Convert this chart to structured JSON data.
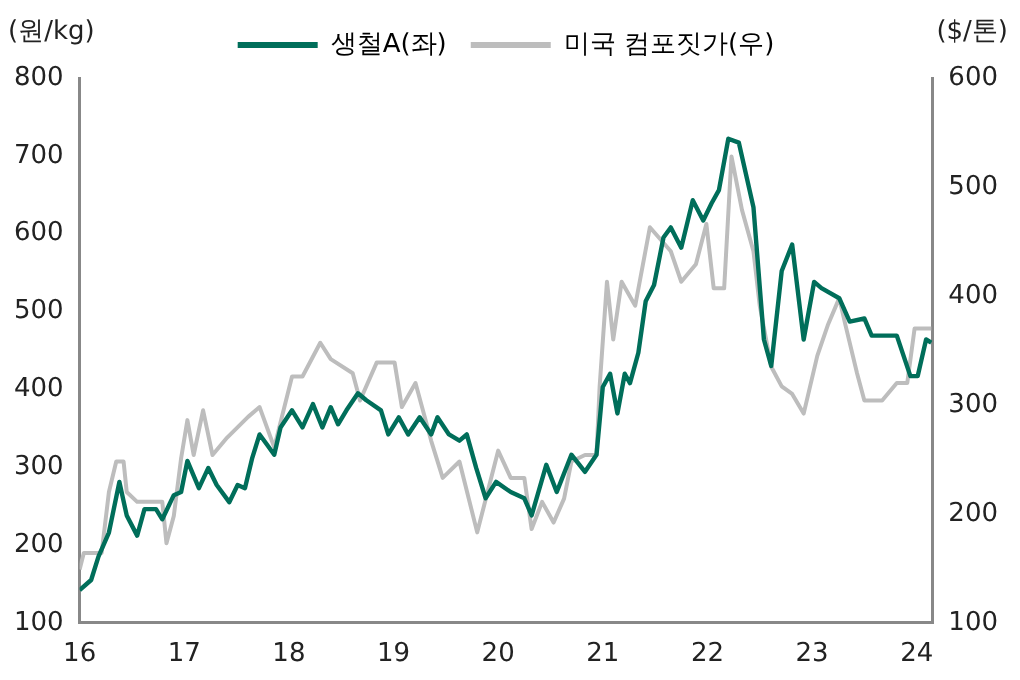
{
  "chart_data": {
    "type": "line",
    "ylabel": "(원/kg)",
    "y2label": "($/톤)",
    "xlim": [
      16,
      24.15
    ],
    "xticks": [
      16,
      17,
      18,
      19,
      20,
      21,
      22,
      23,
      24
    ],
    "ylim": [
      100,
      800
    ],
    "yticks": [
      100,
      200,
      300,
      400,
      500,
      600,
      700,
      800
    ],
    "y2lim": [
      100,
      600
    ],
    "y2ticks": [
      100,
      200,
      300,
      400,
      500,
      600
    ],
    "grid": false,
    "legend": "top",
    "marker": "none",
    "line_style": "solid",
    "series": [
      {
        "name": "생철A(좌)",
        "color": "#006e5a",
        "x": [
          16.0,
          16.11,
          16.18,
          16.28,
          16.38,
          16.45,
          16.55,
          16.62,
          16.73,
          16.79,
          16.9,
          16.97,
          17.03,
          17.14,
          17.23,
          17.31,
          17.43,
          17.51,
          17.58,
          17.65,
          17.72,
          17.79,
          17.86,
          17.92,
          18.03,
          18.13,
          18.23,
          18.32,
          18.4,
          18.47,
          18.55,
          18.66,
          18.74,
          18.88,
          18.95,
          19.05,
          19.14,
          19.25,
          19.36,
          19.42,
          19.53,
          19.63,
          19.7,
          19.79,
          19.88,
          19.98,
          20.12,
          20.25,
          20.32,
          20.46,
          20.56,
          20.7,
          20.83,
          20.94,
          21.0,
          21.07,
          21.14,
          21.21,
          21.26,
          21.34,
          21.41,
          21.49,
          21.58,
          21.65,
          21.75,
          21.86,
          21.96,
          22.04,
          22.11,
          22.2,
          22.3,
          22.44,
          22.54,
          22.61,
          22.71,
          22.81,
          22.92,
          23.02,
          23.09,
          23.26,
          23.36,
          23.5,
          23.57,
          23.81,
          23.94,
          24.01,
          24.09,
          24.14
        ],
        "values": [
          142,
          155,
          185,
          216,
          281,
          238,
          212,
          246,
          246,
          233,
          264,
          268,
          308,
          273,
          299,
          277,
          255,
          277,
          273,
          312,
          342,
          329,
          316,
          351,
          373,
          351,
          381,
          351,
          377,
          355,
          373,
          395,
          386,
          373,
          342,
          364,
          342,
          364,
          342,
          364,
          342,
          334,
          342,
          299,
          260,
          281,
          268,
          260,
          238,
          303,
          268,
          316,
          294,
          316,
          403,
          420,
          369,
          420,
          408,
          447,
          513,
          534,
          595,
          608,
          582,
          643,
          617,
          639,
          656,
          722,
          717,
          634,
          464,
          430,
          552,
          586,
          464,
          538,
          530,
          517,
          487,
          491,
          469,
          469,
          417,
          417,
          464,
          460
        ]
      },
      {
        "name": "미국 컴포짓가(우)",
        "color": "#bdbdbd",
        "axis": "y2",
        "x": [
          16.0,
          16.04,
          16.21,
          16.28,
          16.35,
          16.42,
          16.45,
          16.55,
          16.79,
          16.83,
          16.9,
          16.97,
          17.03,
          17.09,
          17.18,
          17.27,
          17.41,
          17.61,
          17.72,
          17.86,
          18.03,
          18.13,
          18.3,
          18.4,
          18.61,
          18.68,
          18.84,
          19.01,
          19.08,
          19.21,
          19.36,
          19.47,
          19.63,
          19.8,
          20.0,
          20.12,
          20.25,
          20.32,
          20.42,
          20.53,
          20.63,
          20.7,
          20.83,
          20.94,
          20.97,
          21.04,
          21.1,
          21.18,
          21.31,
          21.45,
          21.65,
          21.75,
          21.89,
          21.99,
          22.06,
          22.16,
          22.23,
          22.33,
          22.44,
          22.5,
          22.61,
          22.71,
          22.81,
          22.92,
          23.05,
          23.15,
          23.26,
          23.32,
          23.43,
          23.5,
          23.67,
          23.81,
          23.91,
          23.98,
          24.14
        ],
        "values": [
          149,
          164,
          164,
          220,
          248,
          248,
          220,
          211,
          211,
          173,
          198,
          251,
          286,
          254,
          295,
          254,
          270,
          289,
          298,
          261,
          326,
          326,
          357,
          342,
          329,
          304,
          339,
          339,
          298,
          320,
          267,
          233,
          248,
          183,
          258,
          233,
          233,
          186,
          211,
          192,
          214,
          248,
          254,
          254,
          317,
          413,
          360,
          413,
          391,
          463,
          441,
          413,
          429,
          466,
          407,
          407,
          528,
          479,
          441,
          391,
          335,
          317,
          310,
          292,
          345,
          373,
          398,
          373,
          329,
          304,
          304,
          320,
          320,
          370,
          370
        ]
      }
    ]
  }
}
